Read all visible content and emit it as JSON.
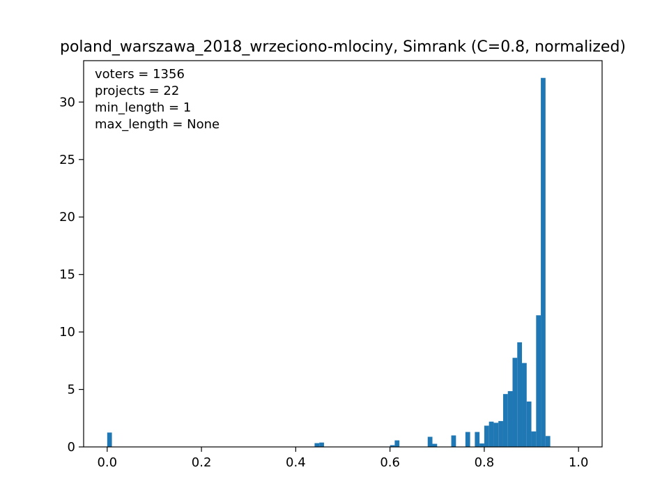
{
  "chart_data": {
    "type": "bar",
    "title": "poland_warszawa_2018_wrzeciono-mlociny, Simrank (C=0.8, normalized)",
    "xlabel": "",
    "ylabel": "",
    "xlim": [
      -0.05,
      1.05
    ],
    "ylim": [
      0,
      33.6
    ],
    "x_ticks": [
      0.0,
      0.2,
      0.4,
      0.6,
      0.8,
      1.0
    ],
    "x_tick_labels": [
      "0.0",
      "0.2",
      "0.4",
      "0.6",
      "0.8",
      "1.0"
    ],
    "y_ticks": [
      0,
      5,
      10,
      15,
      20,
      25,
      30
    ],
    "y_tick_labels": [
      "0",
      "5",
      "10",
      "15",
      "20",
      "25",
      "30"
    ],
    "grid": false,
    "bar_color": "#1f77b4",
    "bin_width": 0.01,
    "bins": [
      {
        "x0": 0.0,
        "value": 1.25
      },
      {
        "x0": 0.44,
        "value": 0.33
      },
      {
        "x0": 0.45,
        "value": 0.38
      },
      {
        "x0": 0.6,
        "value": 0.15
      },
      {
        "x0": 0.61,
        "value": 0.57
      },
      {
        "x0": 0.68,
        "value": 0.88
      },
      {
        "x0": 0.69,
        "value": 0.27
      },
      {
        "x0": 0.73,
        "value": 1.0
      },
      {
        "x0": 0.76,
        "value": 1.3
      },
      {
        "x0": 0.78,
        "value": 1.3
      },
      {
        "x0": 0.79,
        "value": 0.3
      },
      {
        "x0": 0.8,
        "value": 1.85
      },
      {
        "x0": 0.81,
        "value": 2.2
      },
      {
        "x0": 0.82,
        "value": 2.1
      },
      {
        "x0": 0.83,
        "value": 2.25
      },
      {
        "x0": 0.84,
        "value": 4.6
      },
      {
        "x0": 0.85,
        "value": 4.85
      },
      {
        "x0": 0.86,
        "value": 7.75
      },
      {
        "x0": 0.87,
        "value": 9.1
      },
      {
        "x0": 0.88,
        "value": 7.3
      },
      {
        "x0": 0.89,
        "value": 3.95
      },
      {
        "x0": 0.9,
        "value": 1.35
      },
      {
        "x0": 0.91,
        "value": 11.45
      },
      {
        "x0": 0.92,
        "value": 32.1
      },
      {
        "x0": 0.93,
        "value": 0.95
      }
    ],
    "annotations": [
      "voters = 1356",
      "projects = 22",
      "min_length = 1",
      "max_length = None"
    ],
    "annotation_placement": "top-left"
  }
}
